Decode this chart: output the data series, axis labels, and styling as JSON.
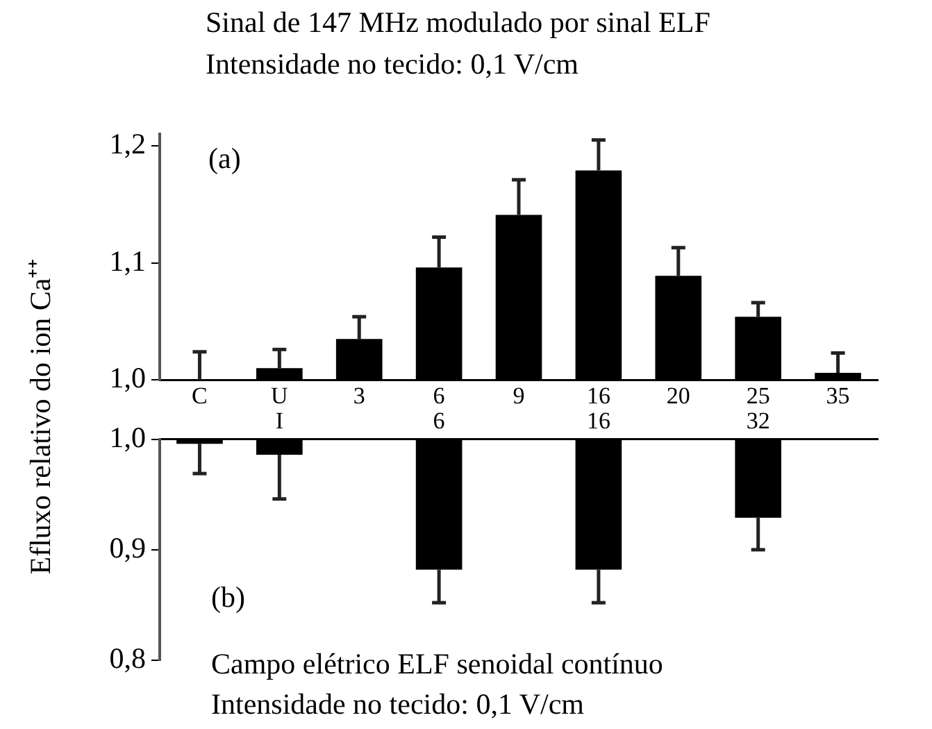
{
  "chart_data": [
    {
      "type": "bar",
      "title": "Sinal de 147 MHz modulado por sinal ELF",
      "subtitle": "Intensidade no tecido: 0,1 V/cm",
      "ylabel": "Efluxo relativo do ion Ca⁺⁺",
      "annotations": [
        "(a)"
      ],
      "categories": [
        "C",
        "U",
        "3",
        "6",
        "9",
        "16",
        "20",
        "25",
        "35"
      ],
      "values": [
        1.0,
        1.01,
        1.035,
        1.096,
        1.141,
        1.179,
        1.089,
        1.054,
        1.006
      ],
      "errors": [
        [
          1.0,
          1.024
        ],
        [
          1.01,
          1.026
        ],
        [
          1.035,
          1.054
        ],
        [
          1.096,
          1.122
        ],
        [
          1.141,
          1.171
        ],
        [
          1.179,
          1.205
        ],
        [
          1.089,
          1.113
        ],
        [
          1.054,
          1.066
        ],
        [
          1.006,
          1.023
        ]
      ],
      "color": "#000000",
      "ylim": [
        1.0,
        1.21
      ],
      "yticks": [
        {
          "value": 1.0,
          "label": "1,0"
        },
        {
          "value": 1.1,
          "label": "1,1"
        },
        {
          "value": 1.2,
          "label": "1,2"
        }
      ],
      "grid": false,
      "legend": false
    },
    {
      "type": "bar",
      "title": "Campo elétrico ELF senoidal contínuo",
      "subtitle": "Intensidade no tecido: 0,1 V/cm",
      "annotations": [
        "(b)"
      ],
      "categories": [
        null,
        "I",
        null,
        "6",
        null,
        "16",
        null,
        "32",
        null
      ],
      "base": [
        1.0,
        1.0,
        null,
        1.0,
        null,
        1.0,
        null,
        1.0,
        null
      ],
      "values": [
        -0.004,
        -0.014,
        null,
        -0.118,
        null,
        -0.118,
        null,
        -0.071,
        null
      ],
      "errors": [
        [
          0.969,
          0.996
        ],
        [
          0.946,
          0.986
        ],
        null,
        [
          0.852,
          0.882
        ],
        null,
        [
          0.852,
          0.882
        ],
        null,
        [
          0.9,
          0.929
        ],
        null
      ],
      "color": "#000000",
      "ylim": [
        0.8,
        1.0
      ],
      "yticks": [
        {
          "value": 0.8,
          "label": "0,8"
        },
        {
          "value": 0.9,
          "label": "0,9"
        },
        {
          "value": 1.0,
          "label": "1,0"
        }
      ],
      "grid": false,
      "legend": false
    }
  ]
}
